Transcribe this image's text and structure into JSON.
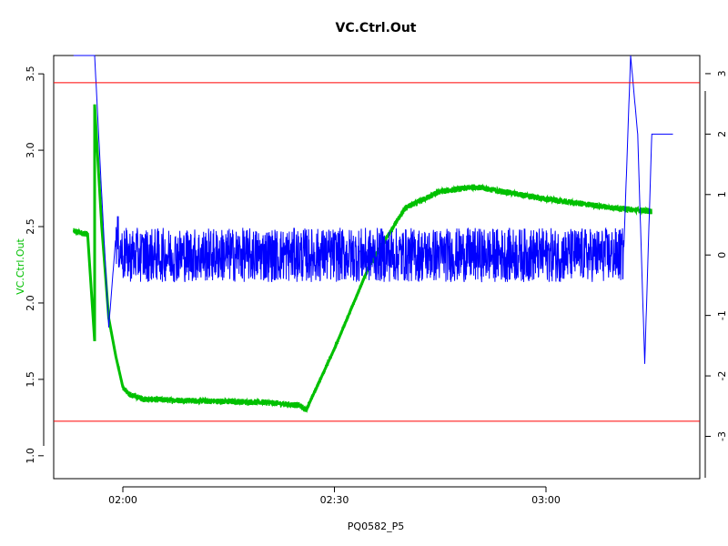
{
  "chart_data": {
    "type": "line",
    "title": "VC.Ctrl.Out",
    "xlabel": "PQ0582_P5",
    "ylabel": "VC.Ctrl.Out",
    "ylabel_color": "#00c000",
    "x_type": "time",
    "x_ticks": [
      "02:00",
      "02:30",
      "03:00"
    ],
    "y_left": {
      "ticks": [
        1.0,
        1.5,
        2.0,
        2.5,
        3.0,
        3.5
      ],
      "range": [
        0.85,
        3.62
      ]
    },
    "y_right": {
      "ticks": [
        -3,
        -2,
        -1,
        0,
        1,
        2,
        3
      ],
      "range": [
        -3.7,
        3.3
      ]
    },
    "grid": false,
    "reference_lines": {
      "axis": "right",
      "values": [
        2.85,
        -2.75
      ],
      "color": "#ff0000"
    },
    "series": [
      {
        "axis": "left",
        "color": "#00c000",
        "points": [
          [
            "01:53",
            2.47
          ],
          [
            "01:54",
            2.46
          ],
          [
            "01:55",
            2.45
          ],
          [
            "01:56",
            1.75
          ],
          [
            "01:56",
            3.3
          ],
          [
            "01:57",
            2.5
          ],
          [
            "01:58",
            1.9
          ],
          [
            "01:59",
            1.65
          ],
          [
            "02:00",
            1.45
          ],
          [
            "02:01",
            1.4
          ],
          [
            "02:03",
            1.37
          ],
          [
            "02:10",
            1.36
          ],
          [
            "02:20",
            1.35
          ],
          [
            "02:25",
            1.33
          ],
          [
            "02:26",
            1.3
          ],
          [
            "02:30",
            1.7
          ],
          [
            "02:35",
            2.25
          ],
          [
            "02:40",
            2.62
          ],
          [
            "02:45",
            2.73
          ],
          [
            "02:50",
            2.76
          ],
          [
            "02:55",
            2.72
          ],
          [
            "03:00",
            2.68
          ],
          [
            "03:05",
            2.65
          ],
          [
            "03:10",
            2.62
          ],
          [
            "03:15",
            2.6
          ]
        ]
      },
      {
        "axis": "right",
        "color": "#0000ff",
        "points": [
          [
            "01:53",
            0.6
          ],
          [
            "01:53",
            3.3
          ],
          [
            "01:56",
            3.3
          ],
          [
            "01:57",
            1.0
          ],
          [
            "01:58",
            -1.2
          ],
          [
            "01:59",
            0.3
          ],
          [
            "02:00",
            0.0
          ],
          [
            "02:30",
            0.0
          ],
          [
            "03:00",
            0.0
          ],
          [
            "03:11",
            0.0
          ],
          [
            "03:12",
            3.3
          ],
          [
            "03:13",
            2.0
          ],
          [
            "03:14",
            -1.8
          ],
          [
            "03:15",
            2.0
          ],
          [
            "03:18",
            2.0
          ]
        ]
      }
    ]
  }
}
